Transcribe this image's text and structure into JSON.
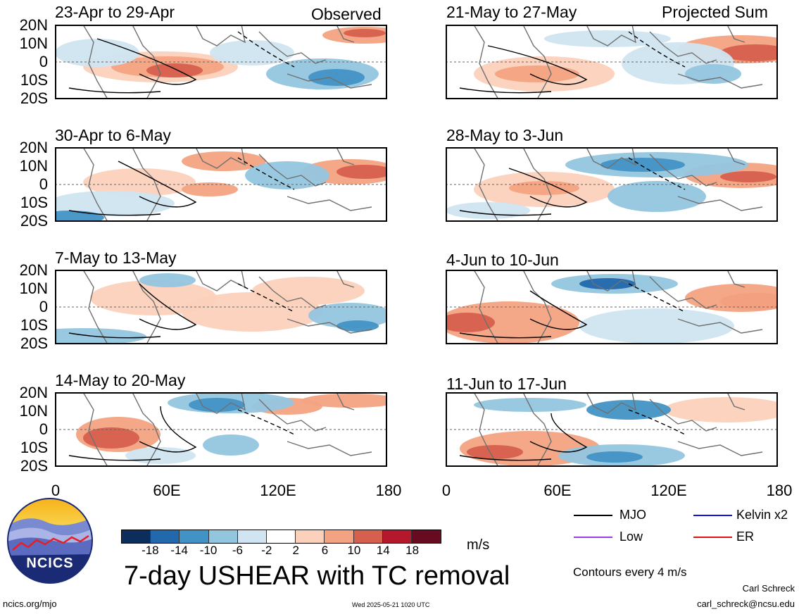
{
  "left_header": "Observed",
  "right_header": "Projected Sum",
  "left_panels": [
    {
      "title": "23-Apr to 29-Apr"
    },
    {
      "title": "30-Apr to 6-May"
    },
    {
      "title": "7-May to 13-May"
    },
    {
      "title": "14-May to 20-May"
    }
  ],
  "right_panels": [
    {
      "title": "21-May to 27-May"
    },
    {
      "title": "28-May to 3-Jun"
    },
    {
      "title": "4-Jun to 10-Jun"
    },
    {
      "title": "11-Jun to 17-Jun"
    }
  ],
  "lat_labels": [
    "20N",
    "10N",
    "0",
    "10S",
    "20S"
  ],
  "lon_labels": [
    "0",
    "60E",
    "120E",
    "180"
  ],
  "colorbar": {
    "tick_labels": [
      "-18",
      "-14",
      "-10",
      "-6",
      "-2",
      "2",
      "6",
      "10",
      "14",
      "18"
    ],
    "colors": [
      "#0b2e5c",
      "#2268ad",
      "#4293c5",
      "#93c5df",
      "#d0e5f1",
      "#ffffff",
      "#fbd1bc",
      "#f3a382",
      "#d65f4d",
      "#b5172c",
      "#680b21"
    ],
    "units": "m/s"
  },
  "legend": {
    "items": [
      {
        "label": "MJO",
        "color": "#000000"
      },
      {
        "label": "Kelvin x2",
        "color": "#1010e0"
      },
      {
        "label": "Low",
        "color": "#9a3ce8"
      },
      {
        "label": "ER",
        "color": "#e01010"
      }
    ],
    "contour_note": "Contours every 4 m/s"
  },
  "main_title": "7-day USHEAR with TC removal",
  "logo_text": "NCICS",
  "footer": {
    "url": "ncics.org/mjo",
    "timestamp": "Wed 2025-05-21 1020 UTC",
    "author": "Carl Schreck",
    "email": "carl_schreck@ncsu.edu"
  }
}
